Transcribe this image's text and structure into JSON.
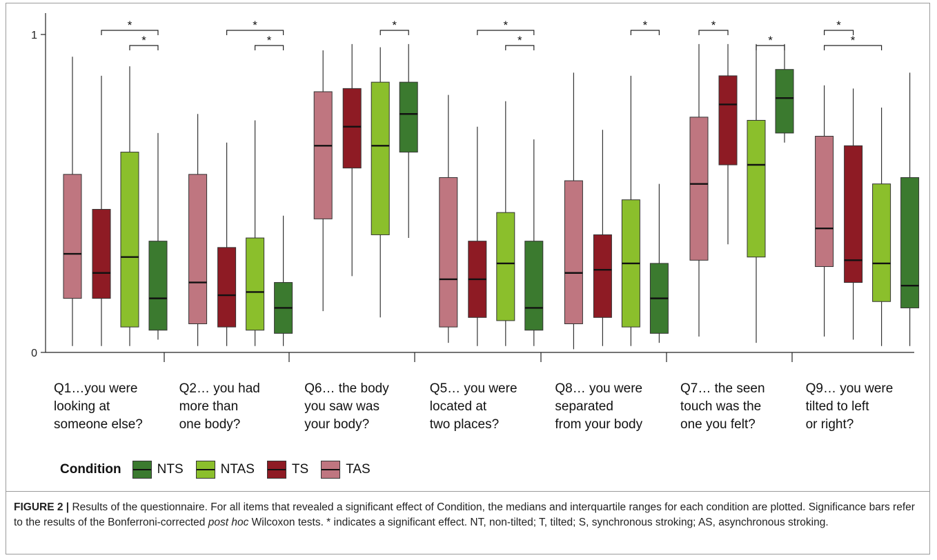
{
  "chart_data": {
    "type": "box",
    "y_ticks": [
      "0",
      "1"
    ],
    "ylim": [
      0,
      1
    ],
    "conditions": [
      "TAS",
      "TS",
      "NTAS",
      "NTS"
    ],
    "categories": [
      {
        "lines": [
          "Q1…you were",
          "looking at",
          "someone else?"
        ],
        "boxes": [
          {
            "condition": "TAS",
            "whisker_low": 0.02,
            "q1": 0.17,
            "median": 0.31,
            "q3": 0.56,
            "whisker_high": 0.93
          },
          {
            "condition": "TS",
            "whisker_low": 0.02,
            "q1": 0.17,
            "median": 0.25,
            "q3": 0.45,
            "whisker_high": 0.87
          },
          {
            "condition": "NTAS",
            "whisker_low": 0.02,
            "q1": 0.08,
            "median": 0.3,
            "q3": 0.63,
            "whisker_high": 0.9
          },
          {
            "condition": "NTS",
            "whisker_low": 0.04,
            "q1": 0.07,
            "median": 0.17,
            "q3": 0.35,
            "whisker_high": 0.69
          }
        ],
        "sig": [
          {
            "from": "TS",
            "to": "NTS",
            "label": "*"
          },
          {
            "from": "NTAS",
            "to": "NTS",
            "label": "*"
          }
        ]
      },
      {
        "lines": [
          "Q2… you had",
          "more than",
          "one body?"
        ],
        "boxes": [
          {
            "condition": "TAS",
            "whisker_low": 0.02,
            "q1": 0.09,
            "median": 0.22,
            "q3": 0.56,
            "whisker_high": 0.75
          },
          {
            "condition": "TS",
            "whisker_low": 0.02,
            "q1": 0.08,
            "median": 0.18,
            "q3": 0.33,
            "whisker_high": 0.66
          },
          {
            "condition": "NTAS",
            "whisker_low": 0.02,
            "q1": 0.07,
            "median": 0.19,
            "q3": 0.36,
            "whisker_high": 0.73
          },
          {
            "condition": "NTS",
            "whisker_low": 0.02,
            "q1": 0.06,
            "median": 0.14,
            "q3": 0.22,
            "whisker_high": 0.43
          }
        ],
        "sig": [
          {
            "from": "TS",
            "to": "NTS",
            "label": "*"
          },
          {
            "from": "NTAS",
            "to": "NTS",
            "label": "*"
          }
        ]
      },
      {
        "lines": [
          "Q6… the body",
          "you saw was",
          "your body?"
        ],
        "boxes": [
          {
            "condition": "TAS",
            "whisker_low": 0.13,
            "q1": 0.42,
            "median": 0.65,
            "q3": 0.82,
            "whisker_high": 0.95
          },
          {
            "condition": "TS",
            "whisker_low": 0.24,
            "q1": 0.58,
            "median": 0.71,
            "q3": 0.83,
            "whisker_high": 0.97
          },
          {
            "condition": "NTAS",
            "whisker_low": 0.11,
            "q1": 0.37,
            "median": 0.65,
            "q3": 0.85,
            "whisker_high": 0.96
          },
          {
            "condition": "NTS",
            "whisker_low": 0.36,
            "q1": 0.63,
            "median": 0.75,
            "q3": 0.85,
            "whisker_high": 0.97
          }
        ],
        "sig": [
          {
            "from": "NTAS",
            "to": "NTS",
            "label": "*"
          }
        ]
      },
      {
        "lines": [
          "Q5… you were",
          "located at",
          "two places?"
        ],
        "boxes": [
          {
            "condition": "TAS",
            "whisker_low": 0.03,
            "q1": 0.08,
            "median": 0.23,
            "q3": 0.55,
            "whisker_high": 0.81
          },
          {
            "condition": "TS",
            "whisker_low": 0.02,
            "q1": 0.11,
            "median": 0.23,
            "q3": 0.35,
            "whisker_high": 0.71
          },
          {
            "condition": "NTAS",
            "whisker_low": 0.02,
            "q1": 0.1,
            "median": 0.28,
            "q3": 0.44,
            "whisker_high": 0.79
          },
          {
            "condition": "NTS",
            "whisker_low": 0.02,
            "q1": 0.07,
            "median": 0.14,
            "q3": 0.35,
            "whisker_high": 0.67
          }
        ],
        "sig": [
          {
            "from": "TS",
            "to": "NTS",
            "label": "*"
          },
          {
            "from": "NTAS",
            "to": "NTS",
            "label": "*"
          }
        ]
      },
      {
        "lines": [
          "Q8… you were",
          "separated",
          "from your body"
        ],
        "boxes": [
          {
            "condition": "TAS",
            "whisker_low": 0.01,
            "q1": 0.09,
            "median": 0.25,
            "q3": 0.54,
            "whisker_high": 0.88
          },
          {
            "condition": "TS",
            "whisker_low": 0.02,
            "q1": 0.11,
            "median": 0.26,
            "q3": 0.37,
            "whisker_high": 0.7
          },
          {
            "condition": "NTAS",
            "whisker_low": 0.02,
            "q1": 0.08,
            "median": 0.28,
            "q3": 0.48,
            "whisker_high": 0.87
          },
          {
            "condition": "NTS",
            "whisker_low": 0.03,
            "q1": 0.06,
            "median": 0.17,
            "q3": 0.28,
            "whisker_high": 0.53
          }
        ],
        "sig": [
          {
            "from": "NTAS",
            "to": "NTS",
            "label": "*"
          }
        ]
      },
      {
        "lines": [
          "Q7… the seen",
          "touch was the",
          "one you felt?"
        ],
        "boxes": [
          {
            "condition": "TAS",
            "whisker_low": 0.05,
            "q1": 0.29,
            "median": 0.53,
            "q3": 0.74,
            "whisker_high": 0.97
          },
          {
            "condition": "TS",
            "whisker_low": 0.34,
            "q1": 0.59,
            "median": 0.78,
            "q3": 0.87,
            "whisker_high": 0.97
          },
          {
            "condition": "NTAS",
            "whisker_low": 0.03,
            "q1": 0.3,
            "median": 0.59,
            "q3": 0.73,
            "whisker_high": 0.97
          },
          {
            "condition": "NTS",
            "whisker_low": 0.66,
            "q1": 0.69,
            "median": 0.8,
            "q3": 0.89,
            "whisker_high": 0.97
          }
        ],
        "sig": [
          {
            "from": "TAS",
            "to": "TS",
            "label": "*"
          },
          {
            "from": "NTAS",
            "to": "NTS",
            "label": "*"
          }
        ]
      },
      {
        "lines": [
          "Q9… you were",
          "tilted to left",
          "or right?"
        ],
        "boxes": [
          {
            "condition": "TAS",
            "whisker_low": 0.05,
            "q1": 0.27,
            "median": 0.39,
            "q3": 0.68,
            "whisker_high": 0.84
          },
          {
            "condition": "TS",
            "whisker_low": 0.04,
            "q1": 0.22,
            "median": 0.29,
            "q3": 0.65,
            "whisker_high": 0.83
          },
          {
            "condition": "NTAS",
            "whisker_low": 0.02,
            "q1": 0.16,
            "median": 0.28,
            "q3": 0.53,
            "whisker_high": 0.77
          },
          {
            "condition": "NTS",
            "whisker_low": 0.02,
            "q1": 0.14,
            "median": 0.21,
            "q3": 0.55,
            "whisker_high": 0.88
          }
        ],
        "sig": [
          {
            "from": "TAS",
            "to": "TS",
            "label": "*"
          },
          {
            "from": "TAS",
            "to": "NTAS",
            "label": "*"
          }
        ]
      }
    ],
    "legend": {
      "title": "Condition",
      "items": [
        {
          "label": "NTS",
          "color": "#3b7a2f"
        },
        {
          "label": "NTAS",
          "color": "#8bbf2c"
        },
        {
          "label": "TS",
          "color": "#8e1b24"
        },
        {
          "label": "TAS",
          "color": "#bf7680"
        }
      ]
    },
    "colors": {
      "TAS": "#bf7680",
      "TS": "#8e1b24",
      "NTAS": "#8bbf2c",
      "NTS": "#3b7a2f"
    }
  },
  "caption": {
    "label": "FIGURE 2 |",
    "text_before": "Results of the questionnaire. For all items that revealed a significant effect of Condition, the medians and interquartile ranges for each condition are plotted. Significance bars refer to the results of the Bonferroni-corrected ",
    "italic": "post hoc",
    "text_after": " Wilcoxon tests. * indicates a significant effect. NT, non-tilted; T, tilted; S, synchronous stroking; AS, asynchronous stroking."
  }
}
